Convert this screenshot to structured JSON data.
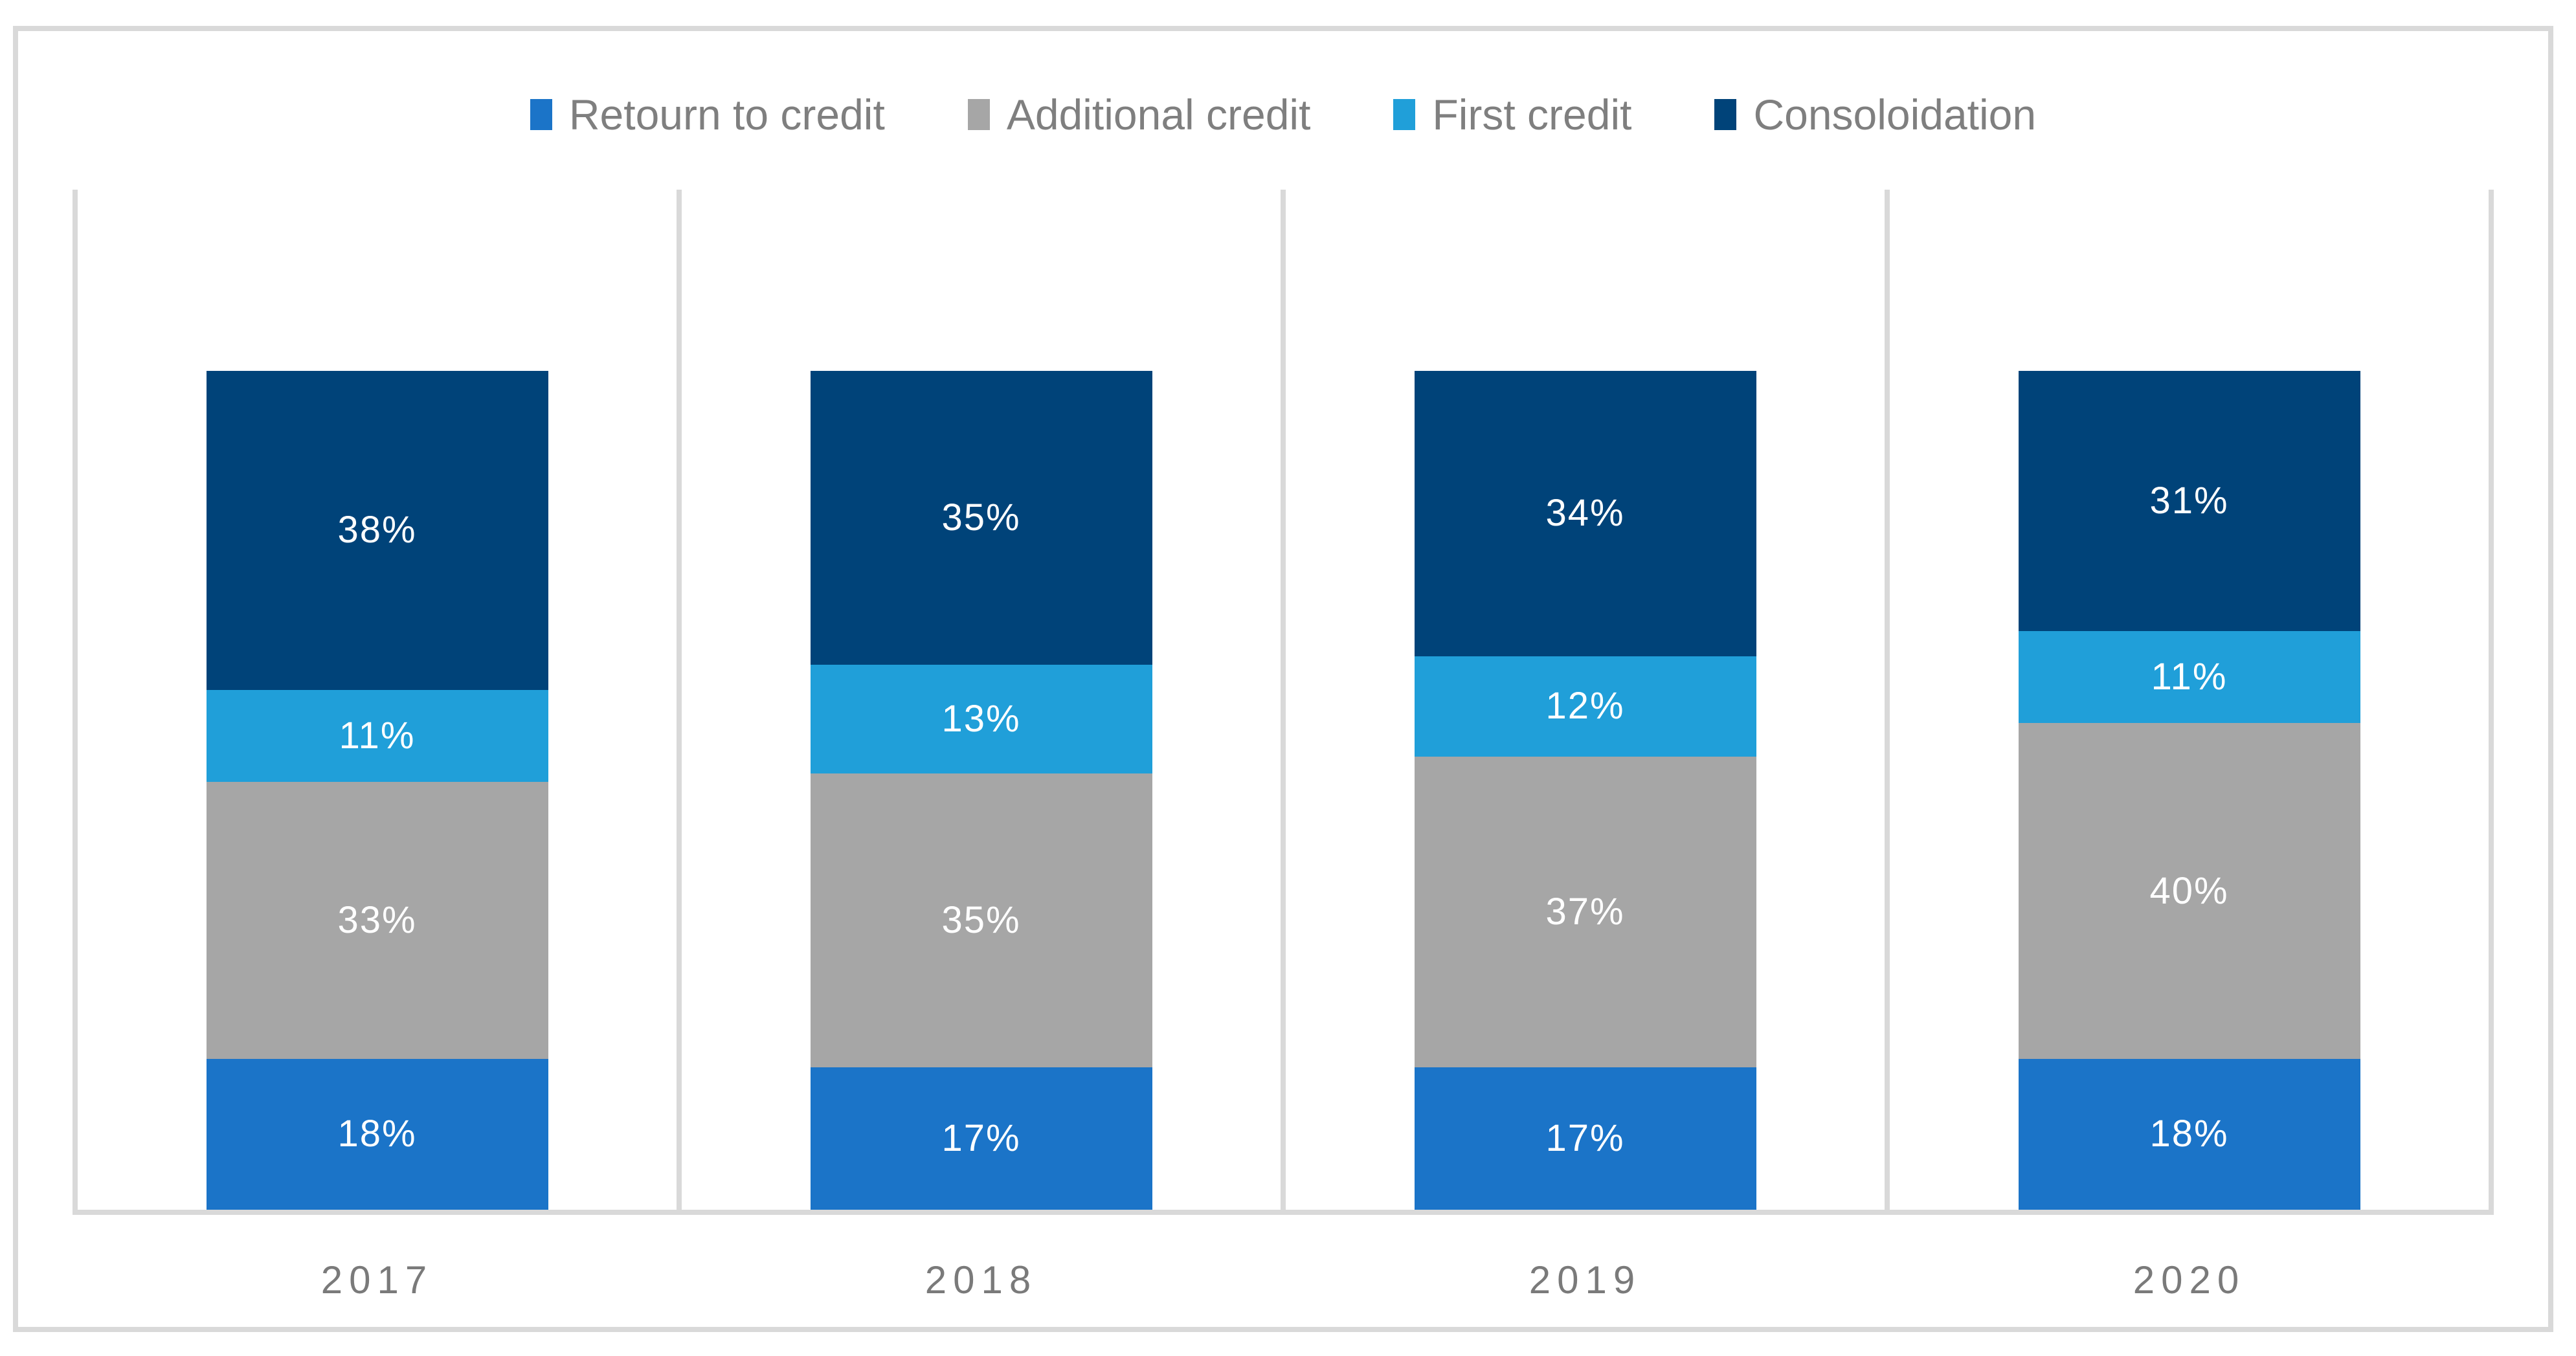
{
  "chart_data": {
    "type": "bar",
    "subtype": "stacked-100-percent-column",
    "title": "",
    "categories": [
      "2017",
      "2018",
      "2019",
      "2020"
    ],
    "series": [
      {
        "name": "Retourn to credit",
        "color": "#1B74C8",
        "values": [
          18,
          17,
          17,
          18
        ],
        "labels": [
          "18%",
          "17%",
          "17%",
          "18%"
        ]
      },
      {
        "name": "Additional credit",
        "color": "#A6A6A6",
        "values": [
          33,
          35,
          37,
          40
        ],
        "labels": [
          "33%",
          "35%",
          "37%",
          "40%"
        ]
      },
      {
        "name": "First credit",
        "color": "#209FD9",
        "values": [
          11,
          13,
          12,
          11
        ],
        "labels": [
          "11%",
          "13%",
          "12%",
          "11%"
        ]
      },
      {
        "name": "Consoloidation",
        "color": "#004379",
        "values": [
          38,
          35,
          34,
          31
        ],
        "labels": [
          "38%",
          "35%",
          "34%",
          "31%"
        ]
      }
    ],
    "stack_order": "series array order, bottom to top",
    "value_suffix": "%",
    "legend_position": "top-center",
    "y_axis_labels_visible": false,
    "gridlines": "vertical category separators only"
  },
  "colors": {
    "background": "#FFFFFF",
    "frame_border": "#D9D9D9",
    "gridline": "#D9D9D9",
    "axis_line": "#D9D9D9",
    "legend_text": "#7F7F7F",
    "category_text": "#7A7A7A",
    "data_label_text": "#FFFFFF"
  }
}
